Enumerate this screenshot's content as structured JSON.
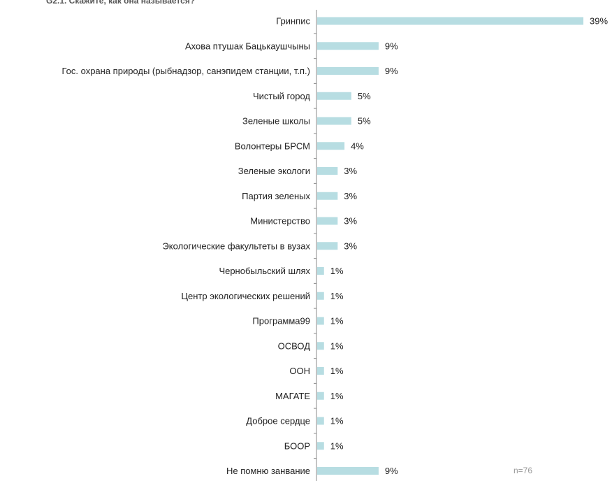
{
  "chart_data": {
    "type": "bar",
    "orientation": "horizontal",
    "title": "G2.1. Скажите, как она называется?",
    "categories": [
      "Гринпис",
      "Ахова птушак Бацькаушчыны",
      "Гос. охрана природы (рыбнадзор, санэпидем станции, т.п.)",
      "Чистый город",
      "Зеленые школы",
      "Волонтеры БРСМ",
      "Зеленые экологи",
      "Партия зеленых",
      "Министерство",
      "Экологические факультеты в вузах",
      "Чернобыльский шлях",
      "Центр экологических решений",
      "Программа99",
      "ОСВОД",
      "ООН",
      "МАГАТЕ",
      "Доброе сердце",
      "БООР",
      "Не помню занвание"
    ],
    "values": [
      39,
      9,
      9,
      5,
      5,
      4,
      3,
      3,
      3,
      3,
      1,
      1,
      1,
      1,
      1,
      1,
      1,
      1,
      9
    ],
    "value_suffix": "%",
    "xlim": [
      0,
      40
    ],
    "grid": false,
    "legend": "none",
    "bar_color": "#b7dde2",
    "note": "n=76"
  }
}
